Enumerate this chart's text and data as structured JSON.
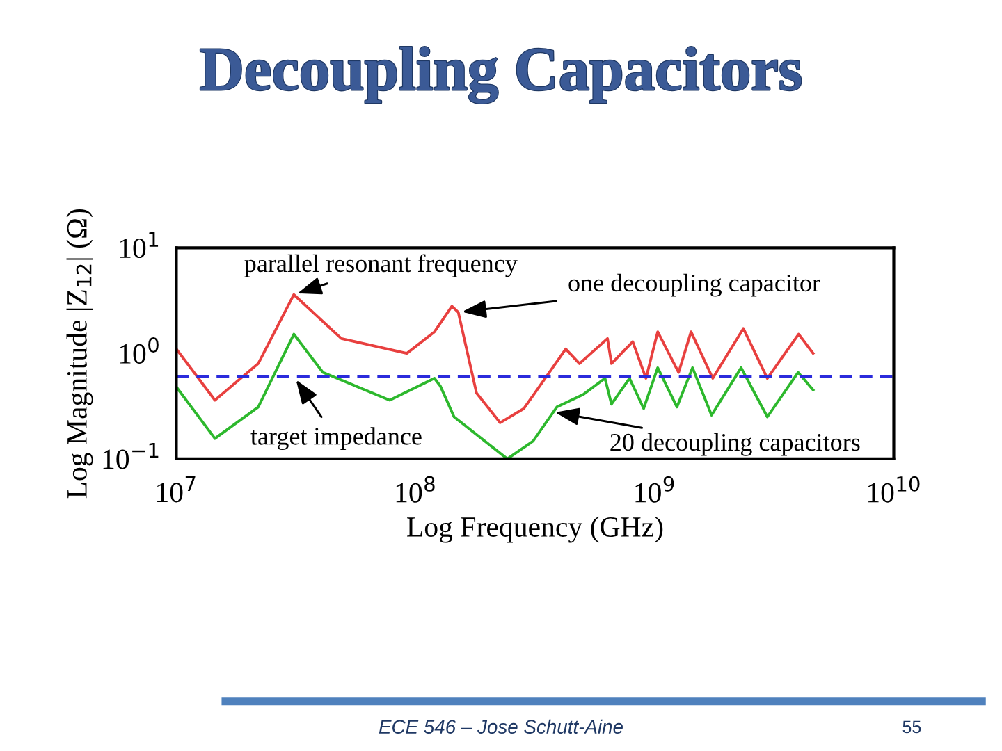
{
  "chart_data": {
    "type": "line",
    "title": "Decoupling Capacitors",
    "xlabel": "Log Frequency (GHz)",
    "ylabel": "Log Magnitude |Z$_{12}$| (Ω)",
    "log": "xy",
    "xlim": [
      10000000,
      10000000000
    ],
    "ylim": [
      0.1,
      10
    ],
    "xticks": [
      {
        "value": 10000000,
        "label": "10$^{7}$"
      },
      {
        "value": 100000000,
        "label": "10$^{8}$"
      },
      {
        "value": 1000000000,
        "label": "10$^{9}$"
      },
      {
        "value": 10000000000,
        "label": "10$^{10}$"
      }
    ],
    "yticks": [
      {
        "value": 0.1,
        "label": "10$^{−1}$"
      },
      {
        "value": 1,
        "label": "10$^{0}$"
      },
      {
        "value": 10,
        "label": "10$^{1}$"
      }
    ],
    "grid": false,
    "marker": "none",
    "line_style": "solid",
    "series": [
      {
        "color": "#e8403f",
        "x": [
          10000000,
          14500000,
          22000000,
          31000000,
          49000000,
          92000000,
          120000000,
          142000000,
          151000000,
          180000000,
          226000000,
          284000000,
          425000000,
          485000000,
          635000000,
          660000000,
          810000000,
          920000000,
          1030000000,
          1260000000,
          1420000000,
          1750000000,
          2350000000,
          2960000000,
          4000000000,
          4600000000
        ],
        "values": [
          1.1,
          0.36,
          0.8,
          3.6,
          1.38,
          1.0,
          1.6,
          2.8,
          2.45,
          0.42,
          0.22,
          0.3,
          1.1,
          0.8,
          1.38,
          0.8,
          1.29,
          0.58,
          1.6,
          0.66,
          1.6,
          0.58,
          1.72,
          0.58,
          1.52,
          1.0
        ]
      },
      {
        "color": "#2db82d",
        "x": [
          10000000,
          14500000,
          22000000,
          31000000,
          41000000,
          78000000,
          120000000,
          127000000,
          145000000,
          242000000,
          310000000,
          390000000,
          505000000,
          620000000,
          660000000,
          785000000,
          900000000,
          1030000000,
          1240000000,
          1440000000,
          1730000000,
          2300000000,
          2960000000,
          3980000000,
          4600000000
        ],
        "values": [
          0.48,
          0.156,
          0.31,
          1.52,
          0.66,
          0.36,
          0.58,
          0.49,
          0.25,
          0.1,
          0.147,
          0.31,
          0.41,
          0.58,
          0.33,
          0.58,
          0.3,
          0.73,
          0.31,
          0.73,
          0.26,
          0.73,
          0.25,
          0.66,
          0.45
        ]
      }
    ],
    "ref_lines": [
      {
        "axis": "y",
        "value": 0.6,
        "color": "#2b2bdc",
        "line_style": "dashed"
      }
    ],
    "annotations": [
      {
        "text": "parallel resonant frequency",
        "x": 31000000,
        "y": 3.6
      },
      {
        "text": "one decoupling capacitor",
        "x": 151000000,
        "y": 2.45
      },
      {
        "text": "target impedance",
        "x": 31000000,
        "y": 0.6
      },
      {
        "text": "20 decoupling capacitors",
        "x": 370000000,
        "y": 0.28
      },
      "ECE 546 – Jose Schutt-Aine",
      "55"
    ]
  }
}
